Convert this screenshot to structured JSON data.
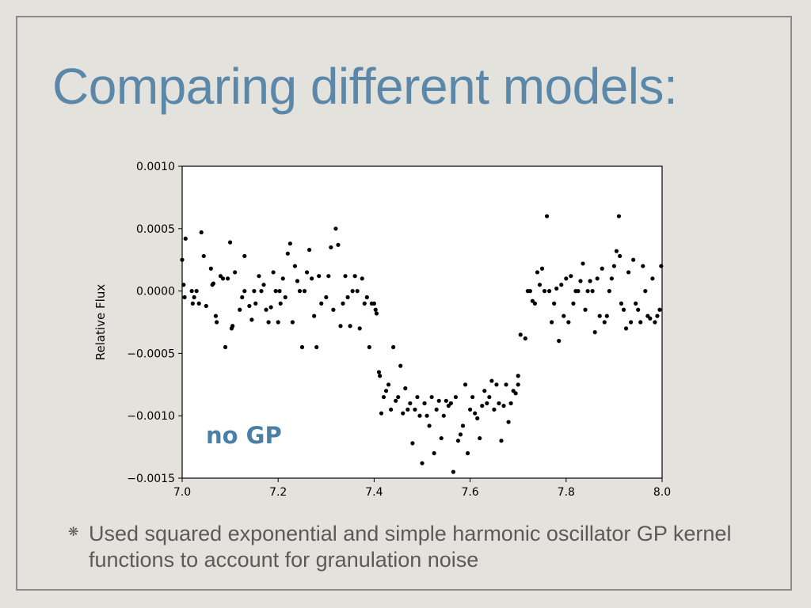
{
  "slide": {
    "title": "Comparing different models:",
    "bullet_text": "Used squared exponential and simple harmonic oscillator GP kernel functions to account for granulation noise",
    "bullet_icon": "asterisk-bullet-icon"
  },
  "colors": {
    "title": "#5b87a8",
    "annotation": "#4a7fa6",
    "points": "#000000",
    "slide_background": "#e4e2dc"
  },
  "chart_data": {
    "type": "scatter",
    "title": "",
    "xlabel": "",
    "ylabel": "Relative Flux",
    "xlim": [
      7.0,
      8.0
    ],
    "ylim": [
      -0.0015,
      0.001
    ],
    "xticks": [
      "7.0",
      "7.2",
      "7.4",
      "7.6",
      "7.8",
      "8.0"
    ],
    "yticks": [
      "0.0010",
      "0.0005",
      "0.0000",
      "−0.0005",
      "−0.0010",
      "−0.0015"
    ],
    "grid": false,
    "annotation": "no GP",
    "series": [
      {
        "points": [
          [
            7.0,
            0.00025
          ],
          [
            7.003,
            5e-05
          ],
          [
            7.005,
            -5e-05
          ],
          [
            7.007,
            0.00042
          ],
          [
            7.02,
            0.0
          ],
          [
            7.022,
            -0.0001
          ],
          [
            7.025,
            -5e-05
          ],
          [
            7.03,
            0.0
          ],
          [
            7.035,
            -0.0001
          ],
          [
            7.04,
            0.00047
          ],
          [
            7.045,
            0.00028
          ],
          [
            7.05,
            -0.00012
          ],
          [
            7.06,
            0.00018
          ],
          [
            7.063,
            5e-05
          ],
          [
            7.065,
            6e-05
          ],
          [
            7.07,
            -0.0002
          ],
          [
            7.072,
            -0.00025
          ],
          [
            7.08,
            0.00012
          ],
          [
            7.085,
            0.0001
          ],
          [
            7.09,
            -0.00045
          ],
          [
            7.095,
            0.0001
          ],
          [
            7.1,
            0.00039
          ],
          [
            7.103,
            -0.0003
          ],
          [
            7.105,
            -0.00028
          ],
          [
            7.11,
            0.00015
          ],
          [
            7.12,
            -0.00015
          ],
          [
            7.125,
            -5e-05
          ],
          [
            7.13,
            0.0
          ],
          [
            7.13,
            0.00028
          ],
          [
            7.14,
            -0.00012
          ],
          [
            7.145,
            -0.00023
          ],
          [
            7.15,
            -0.0
          ],
          [
            7.153,
            -0.0001
          ],
          [
            7.16,
            0.00012
          ],
          [
            7.165,
            -0.0
          ],
          [
            7.17,
            5e-05
          ],
          [
            7.175,
            -0.00015
          ],
          [
            7.18,
            -0.00025
          ],
          [
            7.185,
            -0.00013
          ],
          [
            7.19,
            0.00015
          ],
          [
            7.195,
            -0.0
          ],
          [
            7.2,
            -0.00025
          ],
          [
            7.203,
            0.0
          ],
          [
            7.205,
            -0.0001
          ],
          [
            7.21,
            0.0001
          ],
          [
            7.215,
            -5e-05
          ],
          [
            7.22,
            0.0003
          ],
          [
            7.225,
            0.00038
          ],
          [
            7.23,
            -0.00025
          ],
          [
            7.235,
            0.0002
          ],
          [
            7.24,
            8e-05
          ],
          [
            7.245,
            0.0
          ],
          [
            7.25,
            -0.00045
          ],
          [
            7.255,
            0.0
          ],
          [
            7.26,
            0.00015
          ],
          [
            7.265,
            0.00033
          ],
          [
            7.27,
            0.0001
          ],
          [
            7.275,
            -0.0002
          ],
          [
            7.28,
            -0.00045
          ],
          [
            7.285,
            0.00012
          ],
          [
            7.29,
            -0.0001
          ],
          [
            7.3,
            -5e-05
          ],
          [
            7.305,
            0.00012
          ],
          [
            7.31,
            0.00035
          ],
          [
            7.315,
            -0.00015
          ],
          [
            7.32,
            0.0005
          ],
          [
            7.325,
            0.00037
          ],
          [
            7.33,
            -0.00028
          ],
          [
            7.335,
            -0.0001
          ],
          [
            7.34,
            0.00012
          ],
          [
            7.345,
            -5e-05
          ],
          [
            7.35,
            -0.00028
          ],
          [
            7.355,
            0.0
          ],
          [
            7.36,
            0.00012
          ],
          [
            7.365,
            0.0
          ],
          [
            7.37,
            -0.0003
          ],
          [
            7.375,
            0.0001
          ],
          [
            7.38,
            -0.0001
          ],
          [
            7.385,
            -5e-05
          ],
          [
            7.39,
            -0.00045
          ],
          [
            7.395,
            -0.0001
          ],
          [
            7.4,
            -0.0001
          ],
          [
            7.403,
            -0.00015
          ],
          [
            7.405,
            -0.00018
          ],
          [
            7.41,
            -0.00065
          ],
          [
            7.412,
            -0.00068
          ],
          [
            7.415,
            -0.00098
          ],
          [
            7.42,
            -0.00085
          ],
          [
            7.425,
            -0.0008
          ],
          [
            7.43,
            -0.00075
          ],
          [
            7.435,
            -0.00095
          ],
          [
            7.44,
            -0.00045
          ],
          [
            7.445,
            -0.00088
          ],
          [
            7.45,
            -0.00085
          ],
          [
            7.455,
            -0.0006
          ],
          [
            7.46,
            -0.00098
          ],
          [
            7.465,
            -0.00078
          ],
          [
            7.47,
            -0.00095
          ],
          [
            7.475,
            -0.0009
          ],
          [
            7.48,
            -0.00122
          ],
          [
            7.485,
            -0.00095
          ],
          [
            7.49,
            -0.00085
          ],
          [
            7.495,
            -0.001
          ],
          [
            7.5,
            -0.00138
          ],
          [
            7.505,
            -0.0009
          ],
          [
            7.51,
            -0.001
          ],
          [
            7.515,
            -0.00108
          ],
          [
            7.52,
            -0.00085
          ],
          [
            7.525,
            -0.0013
          ],
          [
            7.53,
            -0.00095
          ],
          [
            7.535,
            -0.00088
          ],
          [
            7.54,
            -0.00118
          ],
          [
            7.545,
            -0.001
          ],
          [
            7.55,
            -0.00088
          ],
          [
            7.555,
            -0.00092
          ],
          [
            7.56,
            -0.0009
          ],
          [
            7.565,
            -0.00145
          ],
          [
            7.57,
            -0.00085
          ],
          [
            7.575,
            -0.0012
          ],
          [
            7.58,
            -0.00115
          ],
          [
            7.585,
            -0.00108
          ],
          [
            7.59,
            -0.00075
          ],
          [
            7.595,
            -0.0013
          ],
          [
            7.6,
            -0.00095
          ],
          [
            7.605,
            -0.00085
          ],
          [
            7.61,
            -0.00098
          ],
          [
            7.615,
            -0.00102
          ],
          [
            7.62,
            -0.00118
          ],
          [
            7.625,
            -0.00092
          ],
          [
            7.63,
            -0.0008
          ],
          [
            7.635,
            -0.0009
          ],
          [
            7.64,
            -0.00085
          ],
          [
            7.645,
            -0.00072
          ],
          [
            7.65,
            -0.00095
          ],
          [
            7.655,
            -0.00075
          ],
          [
            7.66,
            -0.0009
          ],
          [
            7.665,
            -0.0012
          ],
          [
            7.67,
            -0.00092
          ],
          [
            7.675,
            -0.00075
          ],
          [
            7.68,
            -0.00105
          ],
          [
            7.685,
            -0.0009
          ],
          [
            7.69,
            -0.0008
          ],
          [
            7.695,
            -0.00082
          ],
          [
            7.7,
            -0.00075
          ],
          [
            7.7,
            -0.00068
          ],
          [
            7.705,
            -0.00035
          ],
          [
            7.715,
            -0.00038
          ],
          [
            7.72,
            0.0
          ],
          [
            7.725,
            0.0
          ],
          [
            7.73,
            -8e-05
          ],
          [
            7.735,
            -0.0001
          ],
          [
            7.74,
            0.00015
          ],
          [
            7.745,
            5e-05
          ],
          [
            7.75,
            0.00018
          ],
          [
            7.755,
            0.0
          ],
          [
            7.76,
            0.0006
          ],
          [
            7.765,
            -0.0
          ],
          [
            7.77,
            -0.00025
          ],
          [
            7.775,
            -0.0001
          ],
          [
            7.78,
            2e-05
          ],
          [
            7.785,
            -0.0004
          ],
          [
            7.79,
            5e-05
          ],
          [
            7.795,
            -0.0002
          ],
          [
            7.8,
            0.0001
          ],
          [
            7.805,
            -0.00025
          ],
          [
            7.81,
            0.00012
          ],
          [
            7.815,
            -0.0001
          ],
          [
            7.82,
            0.0
          ],
          [
            7.825,
            0.0
          ],
          [
            7.83,
            8e-05
          ],
          [
            7.835,
            0.00022
          ],
          [
            7.84,
            -0.00015
          ],
          [
            7.845,
            0.0
          ],
          [
            7.85,
            8e-05
          ],
          [
            7.855,
            0.0
          ],
          [
            7.86,
            -0.00033
          ],
          [
            7.865,
            0.0001
          ],
          [
            7.87,
            -0.0002
          ],
          [
            7.875,
            0.00018
          ],
          [
            7.88,
            -0.00025
          ],
          [
            7.885,
            -0.0002
          ],
          [
            7.89,
            -0.0
          ],
          [
            7.895,
            0.0001
          ],
          [
            7.9,
            0.0002
          ],
          [
            7.905,
            0.00032
          ],
          [
            7.91,
            0.0006
          ],
          [
            7.912,
            0.00028
          ],
          [
            7.915,
            -0.0001
          ],
          [
            7.92,
            -0.00015
          ],
          [
            7.925,
            -0.0003
          ],
          [
            7.93,
            0.00015
          ],
          [
            7.935,
            -0.00025
          ],
          [
            7.94,
            0.00025
          ],
          [
            7.945,
            -0.0001
          ],
          [
            7.95,
            -0.00015
          ],
          [
            7.955,
            -0.00025
          ],
          [
            7.96,
            0.0002
          ],
          [
            7.965,
            -0.0
          ],
          [
            7.97,
            -0.0002
          ],
          [
            7.975,
            -0.00022
          ],
          [
            7.98,
            0.0001
          ],
          [
            7.985,
            -0.00025
          ],
          [
            7.99,
            -0.0002
          ],
          [
            7.995,
            -0.00015
          ],
          [
            7.998,
            0.0002
          ]
        ]
      }
    ]
  }
}
